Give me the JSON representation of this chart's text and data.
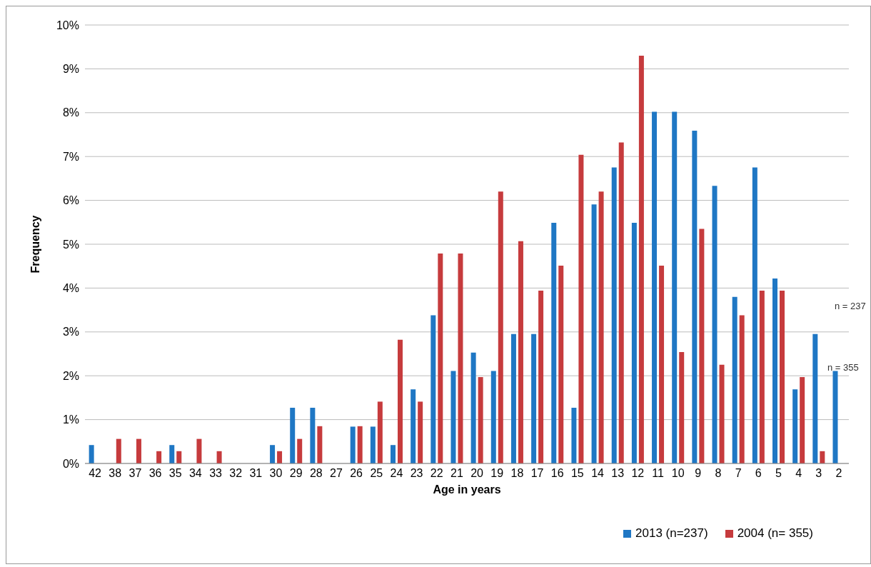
{
  "chart_data": {
    "type": "bar",
    "xlabel": "Age in years",
    "ylabel": "Frequency",
    "categories": [
      "42",
      "38",
      "37",
      "36",
      "35",
      "34",
      "33",
      "32",
      "31",
      "30",
      "29",
      "28",
      "27",
      "26",
      "25",
      "24",
      "23",
      "22",
      "21",
      "20",
      "19",
      "18",
      "17",
      "16",
      "15",
      "14",
      "13",
      "12",
      "11",
      "10",
      "9",
      "8",
      "7",
      "6",
      "5",
      "4",
      "3",
      "2"
    ],
    "series": [
      {
        "name": "2013 (n=237)",
        "color": "#1f77c4",
        "values": [
          0.42,
          0,
          0,
          0,
          0.42,
          0,
          0,
          0,
          0,
          0.42,
          1.27,
          1.27,
          0,
          0.84,
          0.84,
          0.42,
          1.69,
          3.38,
          2.11,
          2.53,
          2.11,
          2.95,
          2.95,
          5.49,
          1.27,
          5.91,
          6.75,
          5.49,
          8.02,
          8.02,
          7.59,
          6.33,
          3.8,
          6.75,
          4.22,
          1.69,
          2.95,
          2.11
        ]
      },
      {
        "name": "2004 (n= 355)",
        "color": "#c63b3d",
        "values": [
          0,
          0.56,
          0.56,
          0.28,
          0.28,
          0.56,
          0.28,
          0,
          0,
          0.28,
          0.56,
          0.85,
          0,
          0.85,
          1.41,
          2.82,
          1.41,
          4.79,
          4.79,
          1.97,
          6.2,
          5.07,
          3.94,
          4.51,
          7.04,
          6.2,
          7.32,
          9.3,
          4.51,
          2.54,
          5.35,
          2.25,
          3.38,
          3.94,
          3.94,
          1.97,
          0.28,
          0
        ]
      }
    ],
    "ylim": [
      0,
      10
    ],
    "yticks": [
      {
        "value": 0,
        "label": "0%"
      },
      {
        "value": 1,
        "label": "1%"
      },
      {
        "value": 2,
        "label": "2%"
      },
      {
        "value": 3,
        "label": "3%"
      },
      {
        "value": 4,
        "label": "4%"
      },
      {
        "value": 5,
        "label": "5%"
      },
      {
        "value": 6,
        "label": "6%"
      },
      {
        "value": 7,
        "label": "7%"
      },
      {
        "value": 8,
        "label": "8%"
      },
      {
        "value": 9,
        "label": "9%"
      },
      {
        "value": 10,
        "label": "10%"
      }
    ],
    "grid": "y",
    "legend": "bottom right",
    "annotations": [
      "n = 237",
      "n = 355"
    ]
  }
}
